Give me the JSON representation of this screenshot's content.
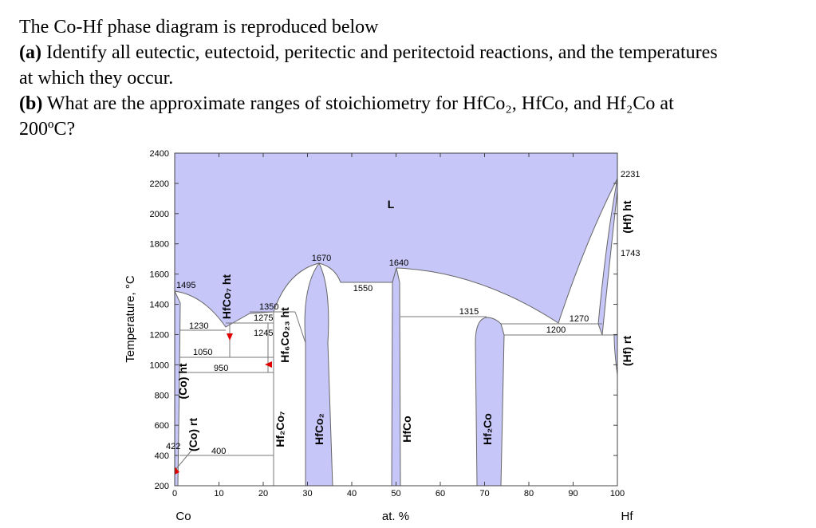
{
  "question": {
    "intro": "The Co-Hf phase diagram is reproduced below",
    "part_a": {
      "label": "(a)",
      "lines": [
        " Identify all eutectic, eutectoid, peritectic and peritectoid reactions, and the temperatures",
        "at which they occur."
      ]
    },
    "part_b": {
      "label": "(b)",
      "lines": [
        " What are the approximate ranges of stoichiometry for HfCo₂, HfCo, and Hf₂Co at",
        "200ºC?"
      ]
    }
  },
  "figure": {
    "y_axis_label": "Temperature, °C",
    "x_axis_label": "at. %",
    "x_left_label": "Co",
    "x_right_label": "Hf",
    "yticks": [
      200,
      400,
      600,
      800,
      1000,
      1200,
      1400,
      1600,
      1800,
      2000,
      2200,
      2400
    ],
    "xticks": [
      0,
      10,
      20,
      30,
      40,
      50,
      60,
      70,
      80,
      90,
      100
    ],
    "phase_labels": [
      "L",
      "HfCo₇ ht",
      "Hf₆Co₂₃ ht",
      "(Co) ht",
      "(Co) rt",
      "Hf₂Co₇",
      "HfCo₂",
      "HfCo",
      "Hf₂Co",
      "(Hf) ht",
      "(Hf) rt"
    ],
    "temperature_labels": [
      "1495",
      "1230",
      "1275",
      "1245",
      "1350",
      "1050",
      "950",
      "422",
      "400",
      "1670",
      "1550",
      "1640",
      "1315",
      "1270",
      "1200",
      "2231",
      "1743"
    ]
  }
}
